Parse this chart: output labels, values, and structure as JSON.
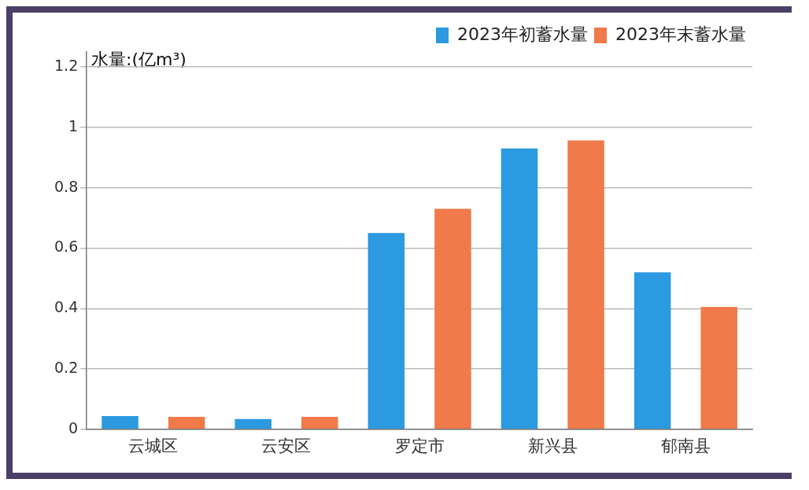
{
  "chart_data": {
    "type": "bar",
    "ylabel": "水量:(亿m³)",
    "categories": [
      "云城区",
      "云安区",
      "罗定市",
      "新兴县",
      "郁南县"
    ],
    "series": [
      {
        "name": "2023年初蓄水量",
        "color": "#2b9ae0",
        "values": [
          0.044,
          0.034,
          0.65,
          0.93,
          0.52
        ]
      },
      {
        "name": "2023年末蓄水量",
        "color": "#f07a4a",
        "values": [
          0.041,
          0.041,
          0.73,
          0.957,
          0.405
        ]
      }
    ],
    "ylim": [
      0,
      1.25
    ],
    "yticks": [
      0,
      0.2,
      0.4,
      0.6,
      0.8,
      1,
      1.2
    ],
    "grid": "y",
    "legend": "top right"
  }
}
